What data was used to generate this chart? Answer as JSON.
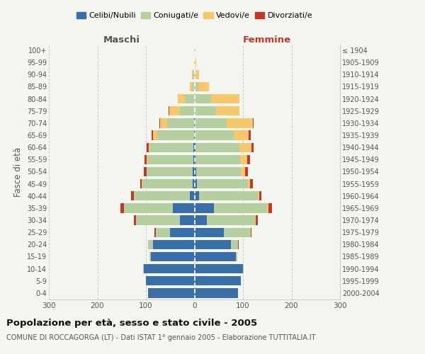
{
  "age_groups": [
    "0-4",
    "5-9",
    "10-14",
    "15-19",
    "20-24",
    "25-29",
    "30-34",
    "35-39",
    "40-44",
    "45-49",
    "50-54",
    "55-59",
    "60-64",
    "65-69",
    "70-74",
    "75-79",
    "80-84",
    "85-89",
    "90-94",
    "95-99",
    "100+"
  ],
  "birth_years": [
    "2000-2004",
    "1995-1999",
    "1990-1994",
    "1985-1989",
    "1980-1984",
    "1975-1979",
    "1970-1974",
    "1965-1969",
    "1960-1964",
    "1955-1959",
    "1950-1954",
    "1945-1949",
    "1940-1944",
    "1935-1939",
    "1930-1934",
    "1925-1929",
    "1920-1924",
    "1915-1919",
    "1910-1914",
    "1905-1909",
    "≤ 1904"
  ],
  "maschi": {
    "celibi": [
      95,
      100,
      105,
      90,
      85,
      50,
      30,
      45,
      10,
      4,
      3,
      2,
      2,
      1,
      1,
      0,
      0,
      0,
      0,
      0,
      0
    ],
    "coniugati": [
      0,
      0,
      1,
      2,
      10,
      30,
      90,
      100,
      115,
      105,
      95,
      95,
      90,
      75,
      55,
      30,
      20,
      5,
      3,
      1,
      1
    ],
    "vedovi": [
      0,
      0,
      0,
      0,
      0,
      0,
      0,
      0,
      0,
      0,
      1,
      1,
      2,
      10,
      15,
      22,
      15,
      5,
      2,
      0,
      0
    ],
    "divorziati": [
      0,
      0,
      0,
      0,
      0,
      2,
      5,
      8,
      5,
      3,
      5,
      5,
      5,
      2,
      1,
      1,
      0,
      0,
      0,
      0,
      0
    ]
  },
  "femmine": {
    "nubili": [
      90,
      95,
      100,
      85,
      75,
      60,
      25,
      40,
      10,
      5,
      3,
      2,
      2,
      1,
      1,
      0,
      0,
      0,
      0,
      0,
      0
    ],
    "coniugate": [
      0,
      0,
      1,
      3,
      15,
      55,
      100,
      110,
      120,
      105,
      92,
      92,
      90,
      80,
      65,
      45,
      35,
      8,
      2,
      1,
      1
    ],
    "vedove": [
      0,
      0,
      0,
      0,
      0,
      1,
      1,
      2,
      3,
      5,
      10,
      15,
      25,
      30,
      55,
      47,
      58,
      22,
      8,
      2,
      0
    ],
    "divorziate": [
      0,
      0,
      0,
      0,
      1,
      2,
      5,
      8,
      5,
      5,
      5,
      5,
      5,
      5,
      1,
      1,
      0,
      0,
      0,
      0,
      0
    ]
  },
  "colors": {
    "celibi_nubili": "#3a6ea8",
    "coniugati": "#b5cfa0",
    "vedovi": "#f5c86e",
    "divorziati": "#c0392b"
  },
  "xlim": 300,
  "title": "Popolazione per età, sesso e stato civile - 2005",
  "subtitle": "COMUNE DI ROCCAGORGA (LT) - Dati ISTAT 1° gennaio 2005 - Elaborazione TUTTITALIA.IT",
  "ylabel_left": "Fasce di età",
  "xlabel_left": "Maschi",
  "xlabel_right": "Femmine",
  "bg_color": "#f5f5f0",
  "grid_color": "#cccccc"
}
